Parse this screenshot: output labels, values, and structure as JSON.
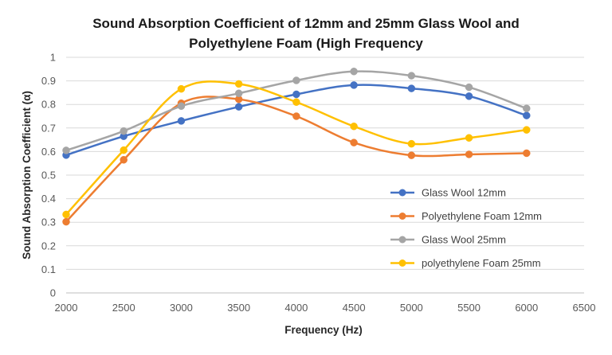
{
  "chart_data": {
    "type": "line",
    "smooth": true,
    "title_lines": [
      "Sound Absorption Coefficient of 12mm and 25mm Glass Wool and",
      "Polyethylene Foam (High Frequency"
    ],
    "xlabel": "Frequency (Hz)",
    "ylabel": "Sound Absorption Coefficient (α)",
    "xlim": [
      2000,
      6500
    ],
    "ylim": [
      0,
      1
    ],
    "x_ticks": [
      "2000",
      "2500",
      "3000",
      "3500",
      "4000",
      "4500",
      "5000",
      "5500",
      "6000",
      "6500"
    ],
    "y_ticks": [
      "0",
      "0.1",
      "0.2",
      "0.3",
      "0.4",
      "0.5",
      "0.6",
      "0.7",
      "0.8",
      "0.9",
      "1"
    ],
    "x": [
      2000,
      2500,
      3000,
      3500,
      4000,
      4500,
      5000,
      5500,
      6000
    ],
    "grid": "horizontal",
    "legend_position": "center-right",
    "series": [
      {
        "name": "Glass Wool 12mm",
        "color": "#4472C4",
        "values": [
          0.585,
          0.665,
          0.73,
          0.79,
          0.843,
          0.882,
          0.868,
          0.835,
          0.753
        ]
      },
      {
        "name": "Polyethylene Foam 12mm",
        "color": "#ED7D31",
        "values": [
          0.302,
          0.565,
          0.805,
          0.822,
          0.75,
          0.638,
          0.584,
          0.588,
          0.593
        ]
      },
      {
        "name": "Glass Wool 25mm",
        "color": "#A5A5A5",
        "values": [
          0.605,
          0.687,
          0.793,
          0.847,
          0.902,
          0.94,
          0.922,
          0.873,
          0.783
        ]
      },
      {
        "name": "polyethylene Foam 25mm",
        "color": "#FFC000",
        "values": [
          0.333,
          0.606,
          0.866,
          0.887,
          0.81,
          0.707,
          0.633,
          0.658,
          0.692
        ]
      }
    ]
  }
}
